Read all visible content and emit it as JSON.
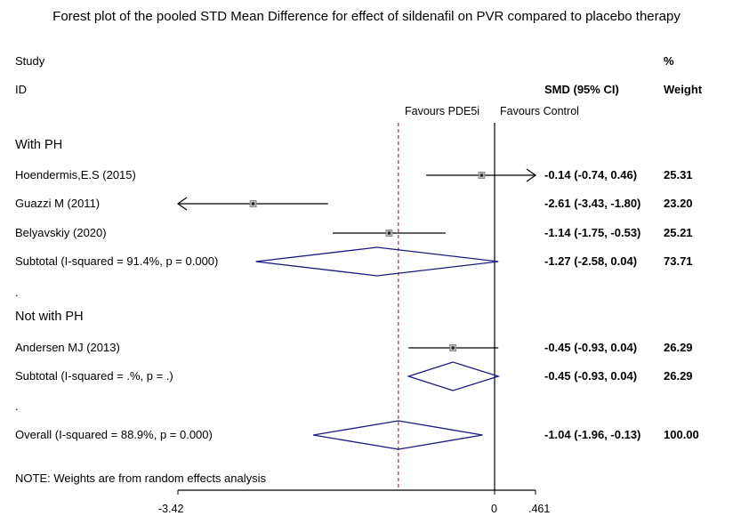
{
  "chart_data": {
    "type": "forest",
    "title": "Forest plot of the pooled STD Mean Difference for effect of sildenafil on PVR compared to placebo therapy",
    "header": {
      "study_line1": "Study",
      "study_line2": "ID",
      "smd": "SMD (95% CI)",
      "weight_line1": "%",
      "weight_line2": "Weight"
    },
    "favours_left": "Favours PDE5i",
    "favours_right": "Favours Control",
    "x_ticks": [
      "-3.42",
      "0",
      ".461"
    ],
    "x_min": -3.42,
    "x_max": 0.461,
    "null_line": 0,
    "overall_effect": -1.04,
    "rows": [
      {
        "kind": "group",
        "label": "With PH"
      },
      {
        "kind": "study",
        "label": "Hoendermis,E.S (2015)",
        "est": -0.14,
        "lo": -0.74,
        "hi": 0.46,
        "ci": "-0.14 (-0.74, 0.46)",
        "weight": "25.31",
        "arrow_right": true,
        "arrow_left": false
      },
      {
        "kind": "study",
        "label": "Guazzi M (2011)",
        "est": -2.61,
        "lo": -3.43,
        "hi": -1.8,
        "ci": "-2.61 (-3.43, -1.80)",
        "weight": "23.20",
        "arrow_right": false,
        "arrow_left": true
      },
      {
        "kind": "study",
        "label": "Belyavskiy (2020)",
        "est": -1.14,
        "lo": -1.75,
        "hi": -0.53,
        "ci": "-1.14 (-1.75, -0.53)",
        "weight": "25.21",
        "arrow_right": false,
        "arrow_left": false
      },
      {
        "kind": "subtotal",
        "label": "Subtotal  (I-squared = 91.4%, p = 0.000)",
        "est": -1.27,
        "lo": -2.58,
        "hi": 0.04,
        "ci": "-1.27 (-2.58, 0.04)",
        "weight": "73.71"
      },
      {
        "kind": "spacer",
        "label": "."
      },
      {
        "kind": "group",
        "label": "Not with PH"
      },
      {
        "kind": "study",
        "label": "Andersen MJ (2013)",
        "est": -0.45,
        "lo": -0.93,
        "hi": 0.04,
        "ci": "-0.45 (-0.93, 0.04)",
        "weight": "26.29",
        "arrow_right": false,
        "arrow_left": false
      },
      {
        "kind": "subtotal",
        "label": "Subtotal  (I-squared = .%, p = .)",
        "est": -0.45,
        "lo": -0.93,
        "hi": 0.04,
        "ci": "-0.45 (-0.93, 0.04)",
        "weight": "26.29"
      },
      {
        "kind": "spacer",
        "label": "."
      },
      {
        "kind": "overall",
        "label": "Overall  (I-squared = 88.9%, p = 0.000)",
        "est": -1.04,
        "lo": -1.96,
        "hi": -0.13,
        "ci": "-1.04 (-1.96, -0.13)",
        "weight": "100.00"
      }
    ],
    "note": "NOTE: Weights are from random effects analysis",
    "colors": {
      "diamond": "#1a1a80",
      "null_line": "#000000",
      "overall_line": "#b03030",
      "point": "#555555"
    }
  }
}
